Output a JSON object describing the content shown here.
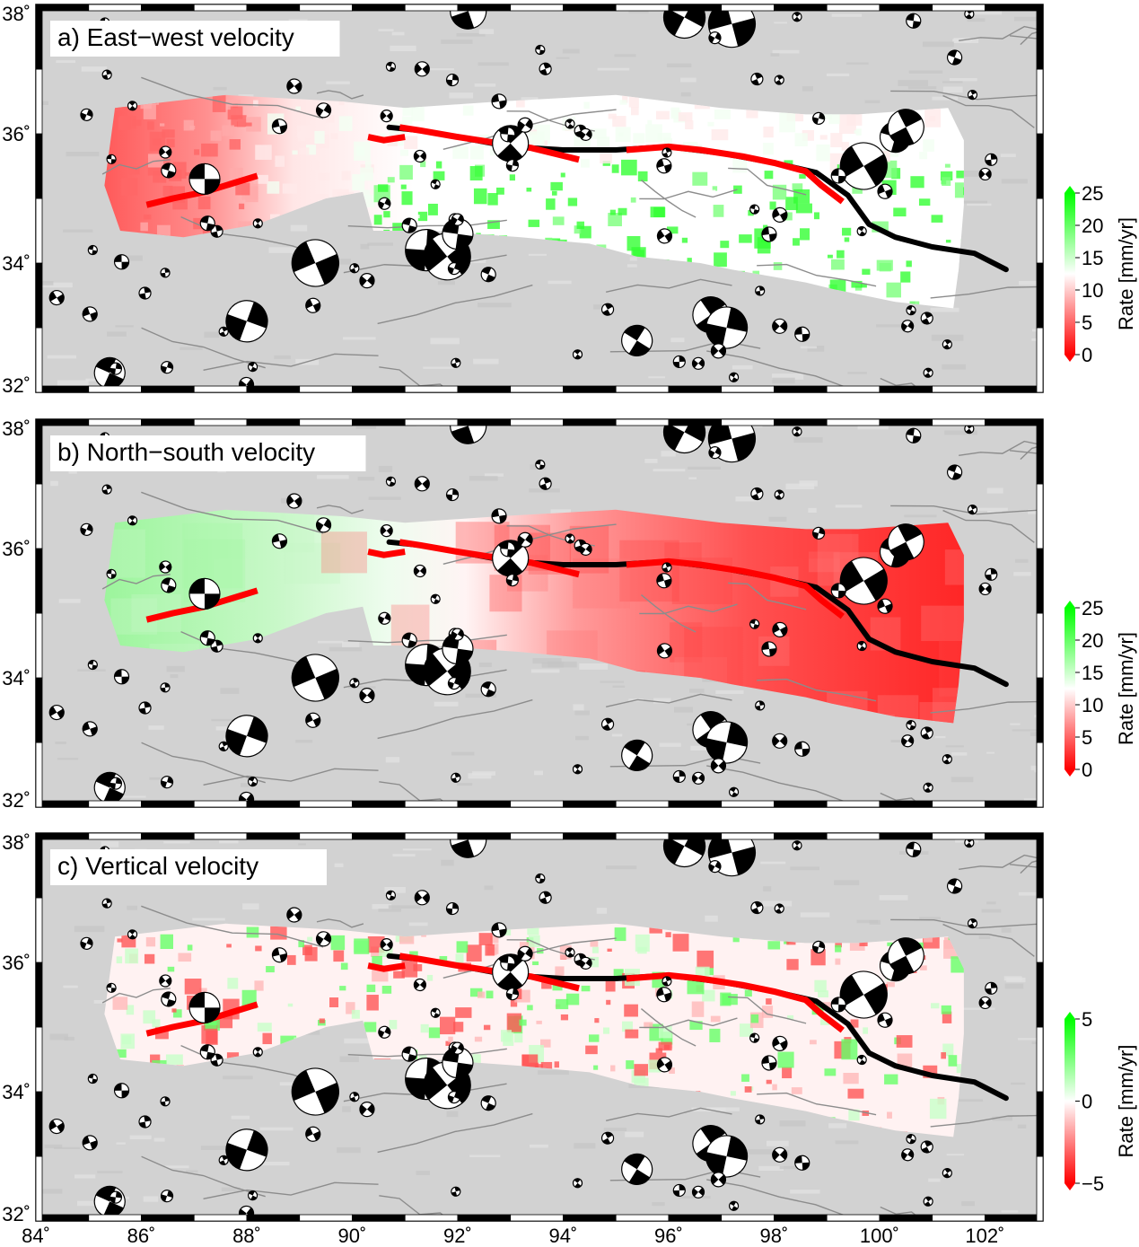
{
  "figure": {
    "panels": [
      {
        "title": "a) East−west velocity",
        "scale": "divergent-0-25",
        "colorbar": {
          "label": "Rate [mm/yr]",
          "ticks": [
            "0",
            "5",
            "10",
            "15",
            "20",
            "25"
          ]
        }
      },
      {
        "title": "b) North−south velocity",
        "scale": "divergent-0-25",
        "colorbar": {
          "label": "Rate [mm/yr]",
          "ticks": [
            "0",
            "5",
            "10",
            "15",
            "20",
            "25"
          ]
        }
      },
      {
        "title": "c) Vertical velocity",
        "scale": "divergent-neg5-5",
        "colorbar": {
          "label": "Rate [mm/yr]",
          "ticks": [
            "−5",
            "0",
            "5"
          ]
        }
      }
    ],
    "lat_labels": [
      "38˚",
      "36˚",
      "34˚",
      "32˚"
    ],
    "lon_labels": [
      "84˚",
      "86˚",
      "88˚",
      "90˚",
      "92˚",
      "94˚",
      "96˚",
      "98˚",
      "100˚",
      "102˚"
    ],
    "colors": {
      "low": "#ff0000",
      "mid": "#ffffff",
      "high": "#00ff00",
      "relief": "#d2d2d2",
      "fault_trace_red": "#ff0000",
      "fault_trace_black": "#000000",
      "faults": "#8c8c8c"
    },
    "symbols": "beach-ball focal mechanisms"
  }
}
